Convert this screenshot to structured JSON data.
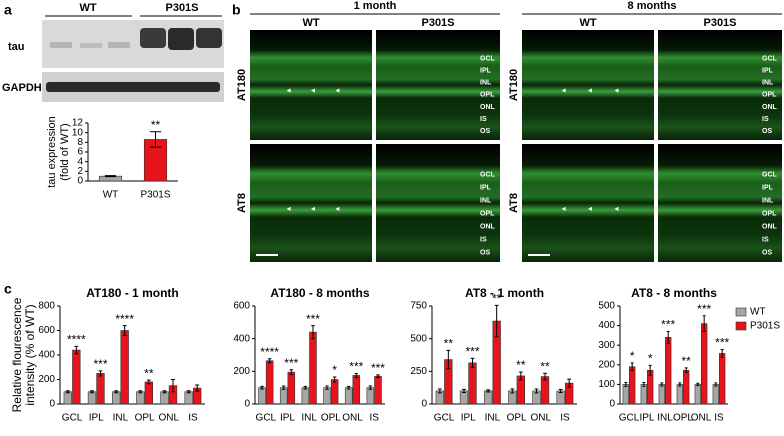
{
  "panel_labels": [
    "a",
    "b",
    "c"
  ],
  "blot": {
    "groups": [
      "WT",
      "P301S"
    ],
    "rows": [
      "tau",
      "GAPDH"
    ]
  },
  "micrographs": {
    "groups": [
      {
        "title": "1 month",
        "columns": [
          "WT",
          "P301S"
        ]
      },
      {
        "title": "8 months",
        "columns": [
          "WT",
          "P301S"
        ]
      }
    ],
    "rows": [
      "AT180",
      "AT8"
    ],
    "layers": [
      "GCL",
      "IPL",
      "INL",
      "OPL",
      "ONL",
      "IS",
      "OS"
    ]
  },
  "chart_data": [
    {
      "type": "bar",
      "ylabel": [
        "tau expression",
        "(fold of WT)"
      ],
      "categories": [
        "WT",
        "P301S"
      ],
      "values": [
        1,
        8.6
      ],
      "errors": [
        0.1,
        1.6
      ],
      "colors": [
        "#a6a6a6",
        "#e8141c"
      ],
      "annotations": [
        null,
        "**"
      ],
      "ylim": [
        0,
        12
      ],
      "yticks": [
        0,
        2,
        4,
        6,
        8,
        10,
        12
      ]
    },
    {
      "type": "bar",
      "title": "AT180 - 1 month",
      "ylabel": [
        "Relative flourescence",
        "intensity (% of WT)"
      ],
      "categories": [
        "GCL",
        "IPL",
        "INL",
        "OPL",
        "ONL",
        "IS"
      ],
      "series": [
        {
          "color": "#a6a6a6",
          "values": [
            100,
            100,
            100,
            100,
            100,
            100
          ],
          "errors": [
            8,
            8,
            8,
            8,
            8,
            8
          ]
        },
        {
          "color": "#e8141c",
          "values": [
            440,
            250,
            600,
            180,
            150,
            130
          ],
          "errors": [
            30,
            20,
            40,
            15,
            50,
            25
          ],
          "annotations": [
            "****",
            "***",
            "****",
            "**",
            null,
            null
          ]
        }
      ],
      "ylim": [
        0,
        800
      ],
      "yticks": [
        0,
        200,
        400,
        600,
        800
      ]
    },
    {
      "type": "bar",
      "title": "AT180 - 8 months",
      "categories": [
        "GCL",
        "IPL",
        "INL",
        "OPL",
        "ONL",
        "IS"
      ],
      "series": [
        {
          "color": "#a6a6a6",
          "values": [
            100,
            100,
            100,
            100,
            100,
            100
          ],
          "errors": [
            8,
            10,
            8,
            10,
            8,
            10
          ]
        },
        {
          "color": "#e8141c",
          "values": [
            265,
            195,
            440,
            150,
            175,
            170
          ],
          "errors": [
            12,
            15,
            40,
            15,
            12,
            8
          ],
          "annotations": [
            "****",
            "***",
            "***",
            "*",
            "***",
            "***"
          ]
        }
      ],
      "ylim": [
        0,
        600
      ],
      "yticks": [
        0,
        200,
        400,
        600
      ]
    },
    {
      "type": "bar",
      "title": "AT8 - 1 month",
      "categories": [
        "GCL",
        "IPL",
        "INL",
        "OPL",
        "ONL",
        "IS"
      ],
      "series": [
        {
          "color": "#a6a6a6",
          "values": [
            100,
            100,
            100,
            100,
            100,
            100
          ],
          "errors": [
            15,
            12,
            8,
            15,
            15,
            12
          ]
        },
        {
          "color": "#e8141c",
          "values": [
            340,
            315,
            635,
            215,
            210,
            160
          ],
          "errors": [
            70,
            35,
            120,
            30,
            25,
            30
          ],
          "annotations": [
            "**",
            "***",
            "**",
            "**",
            "**",
            null
          ]
        }
      ],
      "ylim": [
        0,
        750
      ],
      "yticks": [
        0,
        250,
        500,
        750
      ]
    },
    {
      "type": "bar",
      "title": "AT8 - 8 months",
      "categories": [
        "GCL",
        "IPL",
        "INL",
        "OPL",
        "ONL",
        "IS"
      ],
      "series": [
        {
          "name": "WT",
          "color": "#a6a6a6",
          "values": [
            100,
            100,
            100,
            100,
            100,
            100
          ],
          "errors": [
            10,
            10,
            8,
            8,
            6,
            8
          ]
        },
        {
          "name": "P301S",
          "color": "#e8141c",
          "values": [
            190,
            172,
            340,
            172,
            410,
            258
          ],
          "errors": [
            20,
            25,
            30,
            12,
            40,
            20
          ],
          "annotations": [
            "*",
            "*",
            "***",
            "**",
            "***",
            "***"
          ]
        }
      ],
      "legend": "top-right",
      "ylim": [
        0,
        500
      ],
      "yticks": [
        0,
        100,
        200,
        300,
        400,
        500
      ]
    }
  ]
}
